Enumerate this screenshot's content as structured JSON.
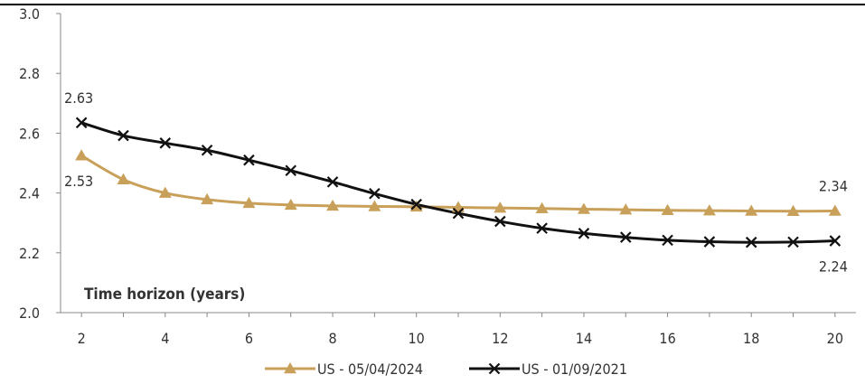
{
  "chart_data": {
    "type": "line",
    "title": "",
    "xlabel": "Time horizon (years)",
    "ylabel": "",
    "x": [
      2,
      3,
      4,
      5,
      6,
      7,
      8,
      9,
      10,
      11,
      12,
      13,
      14,
      15,
      16,
      17,
      18,
      19,
      20
    ],
    "x_ticks": [
      "2",
      "4",
      "6",
      "8",
      "10",
      "12",
      "14",
      "16",
      "18",
      "20"
    ],
    "xlim": [
      1.5,
      20.5
    ],
    "y_ticks": [
      "2.0",
      "2.2",
      "2.4",
      "2.6",
      "2.8",
      "3.0"
    ],
    "ylim": [
      2.0,
      3.0
    ],
    "grid": false,
    "legend_position": "bottom",
    "series": [
      {
        "name": "US - 05/04/2024",
        "color": "#C9A05A",
        "marker": "triangle",
        "values": [
          2.525,
          2.445,
          2.4,
          2.378,
          2.366,
          2.36,
          2.357,
          2.355,
          2.354,
          2.352,
          2.35,
          2.348,
          2.346,
          2.344,
          2.342,
          2.341,
          2.34,
          2.339,
          2.34
        ]
      },
      {
        "name": "US - 01/09/2021",
        "color": "#111111",
        "marker": "x",
        "values": [
          2.635,
          2.592,
          2.567,
          2.543,
          2.51,
          2.475,
          2.437,
          2.398,
          2.362,
          2.332,
          2.305,
          2.282,
          2.265,
          2.252,
          2.242,
          2.237,
          2.235,
          2.236,
          2.24
        ]
      }
    ],
    "annotations": [
      {
        "text": "2.63",
        "series": 1,
        "index": 0,
        "position": "above"
      },
      {
        "text": "2.53",
        "series": 0,
        "index": 0,
        "position": "below"
      },
      {
        "text": "2.34",
        "series": 0,
        "index": 18,
        "position": "above"
      },
      {
        "text": "2.24",
        "series": 1,
        "index": 18,
        "position": "below"
      }
    ]
  }
}
